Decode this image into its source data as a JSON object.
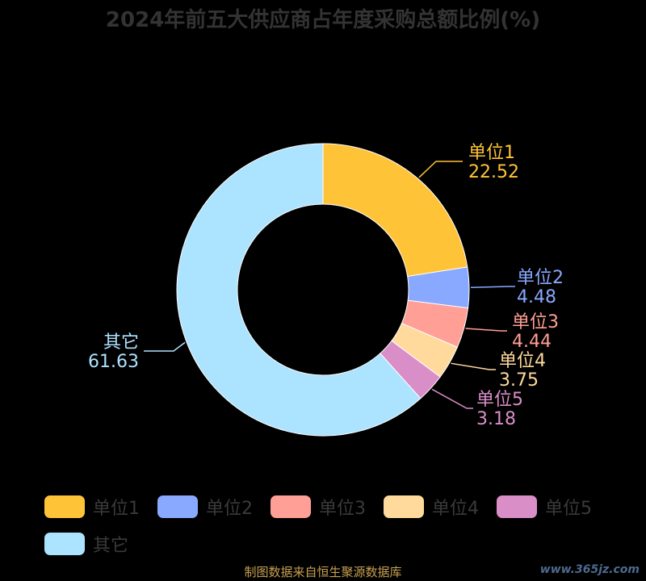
{
  "chart_data": {
    "type": "pie",
    "title": "2024年前五大供应商占年度采购总额比例(%)",
    "categories": [
      "单位1",
      "单位2",
      "单位3",
      "单位4",
      "单位5",
      "其它"
    ],
    "values": [
      22.52,
      4.48,
      4.44,
      3.75,
      3.18,
      61.63
    ],
    "colors": [
      "#ffc337",
      "#89a8ff",
      "#ff9f95",
      "#ffda9c",
      "#da8ec8",
      "#ace3ff"
    ],
    "value_labels": [
      "22.52",
      "4.48",
      "4.44",
      "3.75",
      "3.18",
      "61.63"
    ],
    "donut": true,
    "legend_position": "bottom-left"
  },
  "footer": "制图数据来自恒生聚源数据库",
  "watermark": "www.365jz.com"
}
